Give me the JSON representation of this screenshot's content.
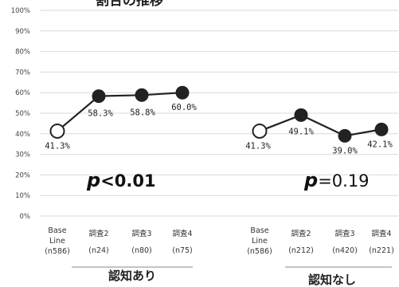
{
  "title": "割合の推移",
  "colors": {
    "line": "#222222",
    "marker_fill": "#222222",
    "marker_open": "#ffffff",
    "grid": "#d9d9d9"
  },
  "chart_data": {
    "type": "line",
    "ylim": [
      0,
      100
    ],
    "yticks": [
      "0%",
      "10%",
      "20%",
      "30%",
      "40%",
      "50%",
      "60%",
      "70%",
      "80%",
      "90%",
      "100%"
    ],
    "grid": true,
    "groups": [
      {
        "label": "認知あり",
        "categories": [
          [
            "Base",
            "Line",
            "(n586)"
          ],
          [
            "調査2",
            "(n24)"
          ],
          [
            "調査3",
            "(n80)"
          ],
          [
            "調査4",
            "(n75)"
          ]
        ],
        "values": [
          41.3,
          58.3,
          58.8,
          60.0
        ],
        "data_labels": [
          "41.3%",
          "58.3%",
          "58.8%",
          "60.0%"
        ],
        "p_value": {
          "prefix": "p",
          "text": "<0.01",
          "bold": true
        }
      },
      {
        "label": "認知なし",
        "categories": [
          [
            "Base",
            "Line",
            "(n586)"
          ],
          [
            "調査2",
            "(n212)"
          ],
          [
            "調査3",
            "(n420)"
          ],
          [
            "調査4",
            "(n221)"
          ]
        ],
        "values": [
          41.3,
          49.1,
          39.0,
          42.1
        ],
        "data_labels": [
          "41.3%",
          "49.1%",
          "39.0%",
          "42.1%"
        ],
        "p_value": {
          "prefix": "p",
          "text": "=0.19",
          "bold": false
        }
      }
    ]
  }
}
